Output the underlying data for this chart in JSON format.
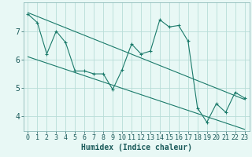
{
  "title": "",
  "xlabel": "Humidex (Indice chaleur)",
  "bg_color": "#e8f8f5",
  "grid_color": "#b8ddd8",
  "line_color": "#1a7a6a",
  "text_color": "#1a5a5a",
  "xlim": [
    -0.5,
    23.5
  ],
  "ylim": [
    3.5,
    8.0
  ],
  "x_data": [
    0,
    1,
    2,
    3,
    4,
    5,
    6,
    7,
    8,
    9,
    10,
    11,
    12,
    13,
    14,
    15,
    16,
    17,
    18,
    19,
    20,
    21,
    22,
    23
  ],
  "y_main": [
    7.6,
    7.3,
    6.2,
    7.0,
    6.6,
    5.6,
    5.6,
    5.5,
    5.5,
    4.95,
    5.65,
    6.55,
    6.2,
    6.3,
    7.4,
    7.15,
    7.2,
    6.65,
    4.3,
    3.8,
    4.45,
    4.15,
    4.85,
    4.65
  ],
  "trend1_x": [
    0,
    23
  ],
  "trend1_y": [
    7.65,
    4.6
  ],
  "trend2_x": [
    0,
    23
  ],
  "trend2_y": [
    6.1,
    3.55
  ],
  "yticks": [
    4,
    5,
    6,
    7
  ],
  "xticks": [
    0,
    1,
    2,
    3,
    4,
    5,
    6,
    7,
    8,
    9,
    10,
    11,
    12,
    13,
    14,
    15,
    16,
    17,
    18,
    19,
    20,
    21,
    22,
    23
  ],
  "xlabel_fontsize": 7,
  "tick_fontsize": 6,
  "linewidth": 0.8,
  "markersize": 3.0
}
